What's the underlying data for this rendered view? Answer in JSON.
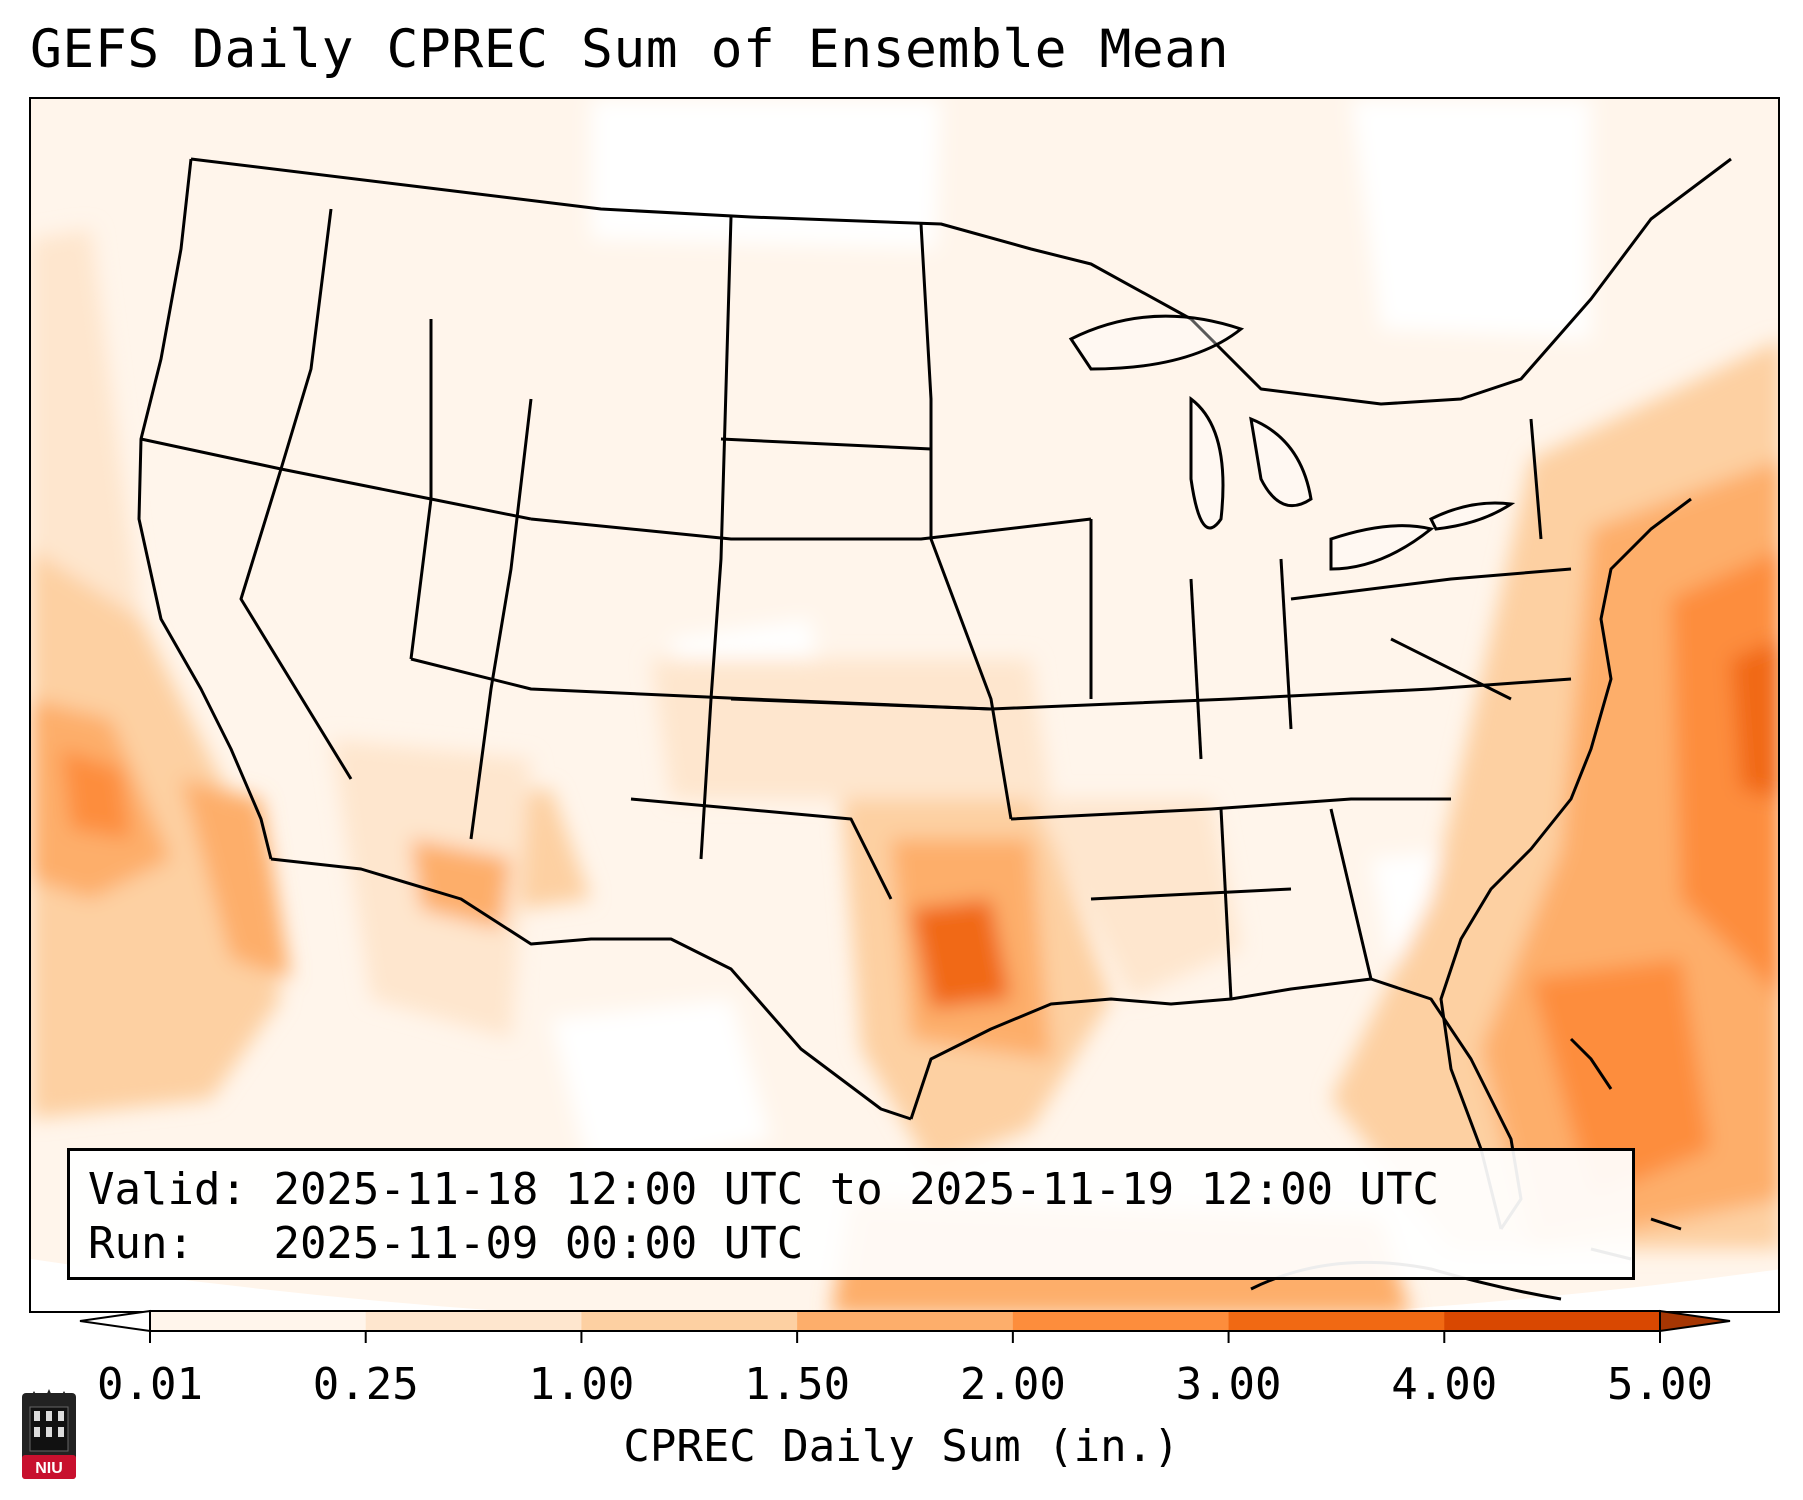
{
  "title": "GEFS Daily CPREC Sum of Ensemble Mean",
  "validity": {
    "valid_label": "Valid:",
    "valid_value": "2025-11-18 12:00 UTC to 2025-11-19 12:00 UTC",
    "run_label": "Run:",
    "run_value": "2025-11-09 00:00 UTC"
  },
  "colorbar": {
    "label": "CPREC Daily Sum (in.)",
    "ticks": [
      "0.01",
      "0.25",
      "1.00",
      "1.50",
      "2.00",
      "3.00",
      "4.00",
      "5.00"
    ],
    "colors": {
      "under": "#ffffff",
      "bin_0": "#fff5eb",
      "bin_1": "#fee6ce",
      "bin_2": "#fdd0a2",
      "bin_3": "#fdae6b",
      "bin_4": "#fd8d3c",
      "bin_5": "#f16913",
      "bin_6": "#d94801",
      "over": "#a63603"
    }
  },
  "logo": {
    "icon": "niu-tower-icon",
    "text": "NIU",
    "color": "#c8102e"
  },
  "map": {
    "region": "Contiguous United States",
    "precip_colors": {
      "light": "#fff5eb",
      "low": "#fee6ce",
      "moderate": "#fdd0a2",
      "heavy": "#fdae6b",
      "very_heavy": "#f16913"
    }
  }
}
